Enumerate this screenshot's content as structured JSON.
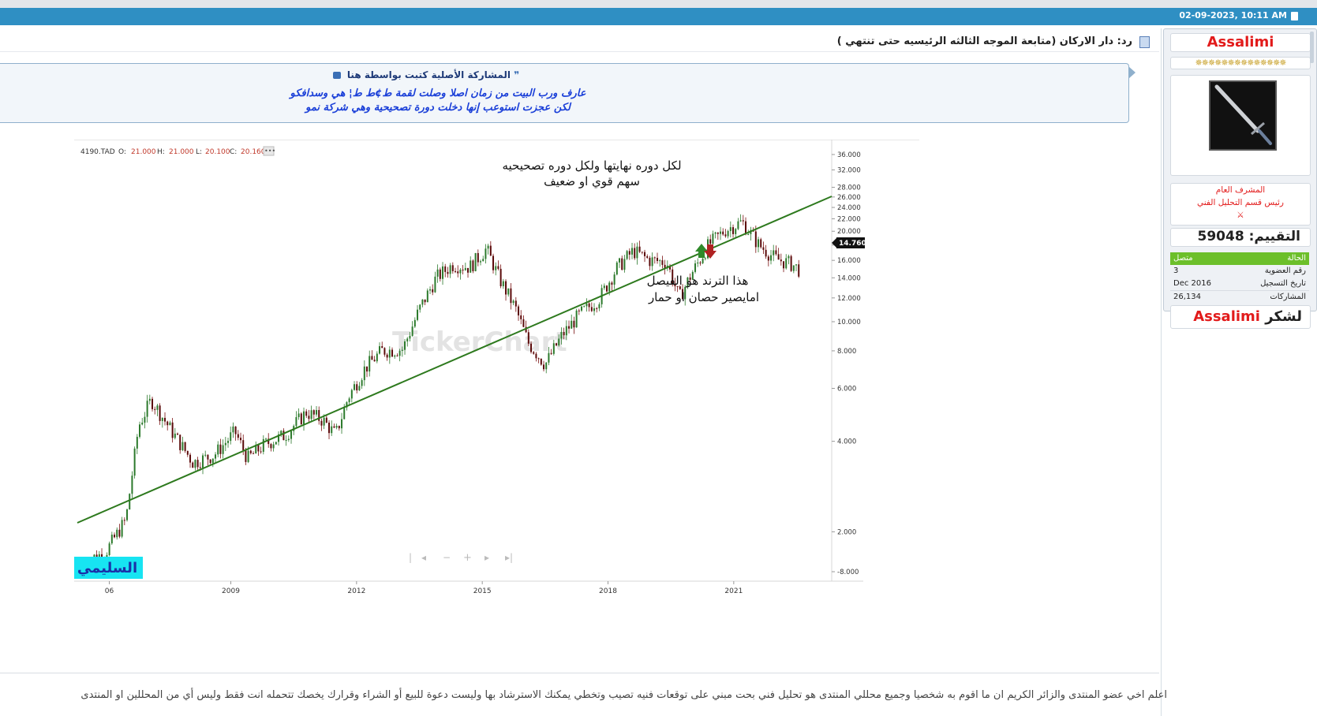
{
  "header": {
    "date": "02-09-2023, 10:11 AM"
  },
  "post": {
    "title": "رد: دار الاركان (متابعة الموجه الثالثه الرئيسيه حتى تنتهي )",
    "quote_header": "المشاركة الأصلية كتبت بواسطة هنا",
    "quote_line1": "عارف ورب البيت من زمان اصلا وصلت لقمة ط¢ط ط¦ هي وسدافكو",
    "quote_line2": "لكن عجزت استوعب إنها دخلت دورة تصحيحية وهي شركة نمو",
    "footer": "اعلم اخي عضو المنتدى والزائر الكريم ان ما اقوم به شخصيا وجميع محللي المنتدى هو تحليل فني بحت مبني على توقعات فنيه تصيب وتخطي يمكنك الاسترشاد بها وليست دعوة للبيع أو الشراء وقرارك يخصك تتحمله انت فقط وليس أي من المحللين او المنتدى"
  },
  "sidebar": {
    "username": "Assalimi",
    "stars": "✵✵✵✵✵✵✵✵✵✵✵✵✵✵",
    "role1": "المشرف العام",
    "role2": "رئيس قسم التحليل الفني",
    "role3": "⚔",
    "rating_label": "التقييم:",
    "rating_value": "59048",
    "info": [
      {
        "key": "الحالة",
        "value": "متصل"
      },
      {
        "key": "رقم العضوية",
        "value": "3"
      },
      {
        "key": "تاريخ التسجيل",
        "value": "Dec 2016"
      },
      {
        "key": "المشاركات",
        "value": "26,134"
      }
    ],
    "thanks_label": "لشكر",
    "thanks_user": "Assalimi",
    "status_color": "#6cbf2a"
  },
  "chart_data": {
    "type": "candlestick",
    "symbol": "4190.TAD",
    "ohlc": {
      "O": "21.000",
      "H": "21.000",
      "L": "20.100",
      "C": "20.160"
    },
    "last_price": "14.760",
    "y_scale": "log",
    "y_ticks": [
      "36.000",
      "32.000",
      "28.000",
      "26.000",
      "24.000",
      "22.000",
      "20.000",
      "18.000",
      "16.000",
      "14.000",
      "12.000",
      "10.000",
      "8.000",
      "6.000",
      "4.000",
      "2.000",
      "-8.000"
    ],
    "x_ticks": [
      "06",
      "2009",
      "2012",
      "2015",
      "2018",
      "2021"
    ],
    "annotations": [
      "لكل دوره نهايتها  ولكل دوره تصحيحيه",
      "سهم قوي او ضعيف",
      "هذا الترند  هو الفيصل",
      "امايصير حصان او حمار"
    ],
    "watermark": "TickerChart",
    "author_tag": "السليمي",
    "trendline": {
      "color": "#2e7a1e"
    },
    "approx_closes": [
      [
        2005.5,
        1.6
      ],
      [
        2006.0,
        1.7
      ],
      [
        2006.5,
        2.2
      ],
      [
        2006.8,
        4.5
      ],
      [
        2007.1,
        5.5
      ],
      [
        2007.6,
        4.3
      ],
      [
        2008.1,
        3.4
      ],
      [
        2008.6,
        3.6
      ],
      [
        2009.1,
        4.3
      ],
      [
        2009.4,
        3.5
      ],
      [
        2009.8,
        3.9
      ],
      [
        2010.3,
        4.2
      ],
      [
        2010.8,
        5.0
      ],
      [
        2011.2,
        4.7
      ],
      [
        2011.5,
        4.2
      ],
      [
        2011.8,
        5.6
      ],
      [
        2012.2,
        7.0
      ],
      [
        2012.6,
        8.0
      ],
      [
        2013.1,
        8.1
      ],
      [
        2013.5,
        11.0
      ],
      [
        2013.9,
        14.0
      ],
      [
        2014.3,
        15.5
      ],
      [
        2014.7,
        15.2
      ],
      [
        2015.1,
        17.5
      ],
      [
        2015.4,
        14.0
      ],
      [
        2015.8,
        11.0
      ],
      [
        2016.1,
        8.5
      ],
      [
        2016.5,
        7.2
      ],
      [
        2016.9,
        9.0
      ],
      [
        2017.3,
        10.5
      ],
      [
        2017.8,
        12.0
      ],
      [
        2018.2,
        15.0
      ],
      [
        2018.6,
        17.2
      ],
      [
        2019.0,
        16.0
      ],
      [
        2019.4,
        15.8
      ],
      [
        2019.7,
        12.0
      ],
      [
        2020.0,
        14.5
      ],
      [
        2020.4,
        18.0
      ],
      [
        2020.8,
        20.2
      ],
      [
        2021.2,
        21.5
      ],
      [
        2021.6,
        18.0
      ],
      [
        2022.0,
        16.2
      ],
      [
        2022.4,
        15.5
      ],
      [
        2022.6,
        14.76
      ]
    ]
  }
}
